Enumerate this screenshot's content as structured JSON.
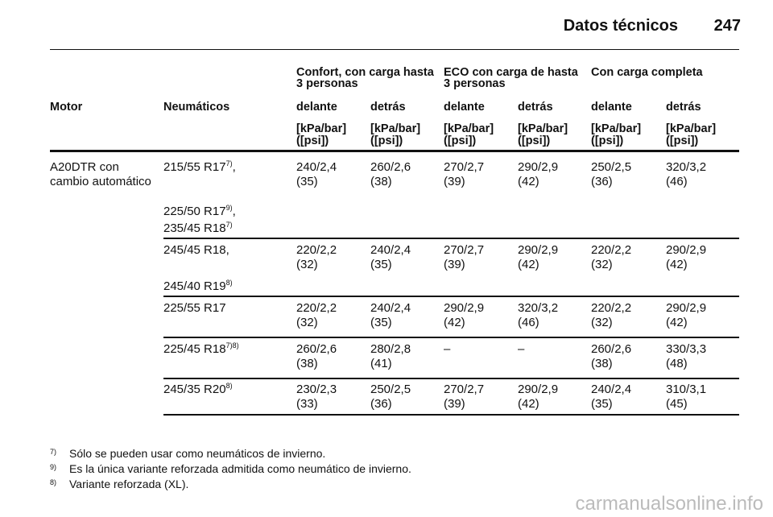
{
  "header": {
    "title": "Datos técnicos",
    "page": "247"
  },
  "table": {
    "group_headers": [
      [
        "Confort, con carga hasta",
        "3 personas"
      ],
      [
        "ECO con carga de hasta",
        "3 personas"
      ],
      [
        "Con carga completa"
      ]
    ],
    "columns": [
      "Motor",
      "Neumáticos",
      "delante",
      "detrás",
      "delante",
      "detrás",
      "delante",
      "detrás"
    ],
    "units": [
      {
        "kpa": "[kPa/bar]",
        "psi": "([psi])"
      },
      {
        "kpa": "[kPa/bar]",
        "psi": "([psi])"
      },
      {
        "kpa": "[kPa/bar]",
        "psi": "([psi])"
      },
      {
        "kpa": "[kPa/bar]",
        "psi": "([psi])"
      },
      {
        "kpa": "[kPa/bar]",
        "psi": "([psi])"
      },
      {
        "kpa": "[kPa/bar]",
        "psi": "([psi])"
      }
    ],
    "motor": [
      "A20DTR con",
      "cambio automático"
    ],
    "rows": [
      {
        "tires": [
          {
            "text": "215/55 R17",
            "sup": "7)",
            "tail": ","
          },
          {
            "text": "225/50 R17",
            "sup": "9)",
            "tail": ","
          },
          {
            "text": "235/45 R18",
            "sup": "7)"
          }
        ],
        "values": [
          {
            "kpa": "240/2,4",
            "psi": "(35)"
          },
          {
            "kpa": "260/2,6",
            "psi": "(38)"
          },
          {
            "kpa": "270/2,7",
            "psi": "(39)"
          },
          {
            "kpa": "290/2,9",
            "psi": "(42)"
          },
          {
            "kpa": "250/2,5",
            "psi": "(36)"
          },
          {
            "kpa": "320/3,2",
            "psi": "(46)"
          }
        ]
      },
      {
        "tires": [
          {
            "text": "245/45 R18,"
          },
          {
            "text": "245/40 R19",
            "sup": "8)"
          }
        ],
        "values": [
          {
            "kpa": "220/2,2",
            "psi": "(32)"
          },
          {
            "kpa": "240/2,4",
            "psi": "(35)"
          },
          {
            "kpa": "270/2,7",
            "psi": "(39)"
          },
          {
            "kpa": "290/2,9",
            "psi": "(42)"
          },
          {
            "kpa": "220/2,2",
            "psi": "(32)"
          },
          {
            "kpa": "290/2,9",
            "psi": "(42)"
          }
        ]
      },
      {
        "tires": [
          {
            "text": "225/55 R17"
          }
        ],
        "values": [
          {
            "kpa": "220/2,2",
            "psi": "(32)"
          },
          {
            "kpa": "240/2,4",
            "psi": "(35)"
          },
          {
            "kpa": "290/2,9",
            "psi": "(42)"
          },
          {
            "kpa": "320/3,2",
            "psi": "(46)"
          },
          {
            "kpa": "220/2,2",
            "psi": "(32)"
          },
          {
            "kpa": "290/2,9",
            "psi": "(42)"
          }
        ]
      },
      {
        "tires": [
          {
            "text": "225/45 R18",
            "sup": "7)8)"
          }
        ],
        "values": [
          {
            "kpa": "260/2,6",
            "psi": "(38)"
          },
          {
            "kpa": "280/2,8",
            "psi": "(41)"
          },
          {
            "kpa": "–"
          },
          {
            "kpa": "–"
          },
          {
            "kpa": "260/2,6",
            "psi": "(38)"
          },
          {
            "kpa": "330/3,3",
            "psi": "(48)"
          }
        ]
      },
      {
        "tires": [
          {
            "text": "245/35 R20",
            "sup": "8)"
          }
        ],
        "values": [
          {
            "kpa": "230/2,3",
            "psi": "(33)"
          },
          {
            "kpa": "250/2,5",
            "psi": "(36)"
          },
          {
            "kpa": "270/2,7",
            "psi": "(39)"
          },
          {
            "kpa": "290/2,9",
            "psi": "(42)"
          },
          {
            "kpa": "240/2,4",
            "psi": "(35)"
          },
          {
            "kpa": "310/3,1",
            "psi": "(45)"
          }
        ]
      }
    ]
  },
  "footnotes": [
    {
      "mark": "7)",
      "text": "Sólo se pueden usar como neumáticos de invierno."
    },
    {
      "mark": "9)",
      "text": "Es la única variante reforzada admitida como neumático de invierno."
    },
    {
      "mark": "8)",
      "text": "Variante reforzada (XL)."
    }
  ],
  "watermark": "carmanualsonline.info"
}
